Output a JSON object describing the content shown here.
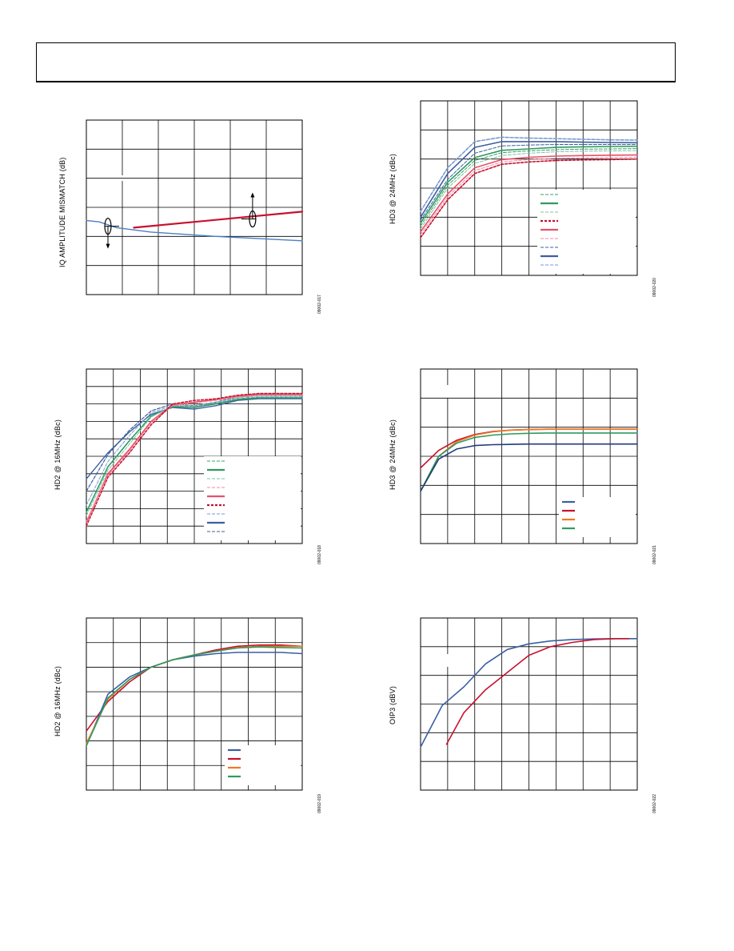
{
  "page": {
    "header_text": ""
  },
  "charts": [
    {
      "id": "c1",
      "ylabel": "IQ AMPLITUDE MISMATCH (dB)",
      "figure_id": "09002-017",
      "series": [
        {
          "color": "#c8102e",
          "width": 2.2,
          "dash": "",
          "x": [
            0.22,
            1.0
          ],
          "y": [
            2.3,
            2.85
          ]
        },
        {
          "color": "#4a7fc1",
          "width": 1.4,
          "dash": "",
          "x": [
            0.0,
            0.06,
            0.14,
            0.3,
            0.6,
            1.0
          ],
          "y": [
            2.55,
            2.5,
            2.3,
            2.15,
            2.0,
            1.85
          ]
        }
      ],
      "markers": [
        {
          "type": "ellipse-down-arrow",
          "x": 0.1,
          "y": 2.35
        },
        {
          "type": "ellipse-up-arrow",
          "x": 0.77,
          "y": 2.6
        }
      ]
    },
    {
      "id": "c2",
      "ylabel": "HD3 @ 24MHz (dBc)",
      "figure_id": "09002-020",
      "legend_styles": [
        {
          "color": "#3aa06a",
          "dash": "4,2",
          "width": 1.0
        },
        {
          "color": "#2e9b5f",
          "dash": "",
          "width": 2.2
        },
        {
          "color": "#7cc4a0",
          "dash": "4,2",
          "width": 1.0
        },
        {
          "color": "#c8102e",
          "dash": "3,2",
          "width": 2.2
        },
        {
          "color": "#e8506a",
          "dash": "",
          "width": 2.2
        },
        {
          "color": "#f08aa0",
          "dash": "4,2",
          "width": 1.0
        },
        {
          "color": "#3b5fa0",
          "dash": "4,2",
          "width": 1.0
        },
        {
          "color": "#3b5fa0",
          "dash": "",
          "width": 2.2
        },
        {
          "color": "#7a9ad0",
          "dash": "4,2",
          "width": 1.0
        }
      ],
      "series": [
        {
          "color": "#7a9ad0",
          "width": 1.6,
          "dash": "4,2",
          "x": [
            0,
            4,
            8,
            12,
            16,
            20,
            24,
            28,
            32
          ],
          "y": [
            2.2,
            3.7,
            4.6,
            4.75,
            4.72,
            4.7,
            4.68,
            4.66,
            4.65
          ]
        },
        {
          "color": "#3b5fa0",
          "width": 1.6,
          "dash": "",
          "x": [
            0,
            4,
            8,
            12,
            16,
            20,
            24,
            28,
            32
          ],
          "y": [
            2.0,
            3.5,
            4.4,
            4.6,
            4.6,
            4.6,
            4.58,
            4.57,
            4.56
          ]
        },
        {
          "color": "#3b5fa0",
          "width": 1.0,
          "dash": "4,2",
          "x": [
            0,
            4,
            8,
            12,
            16,
            20,
            24,
            28,
            32
          ],
          "y": [
            1.9,
            3.3,
            4.2,
            4.45,
            4.48,
            4.5,
            4.5,
            4.5,
            4.5
          ]
        },
        {
          "color": "#2e9b5f",
          "width": 1.6,
          "dash": "",
          "x": [
            0,
            4,
            8,
            12,
            16,
            20,
            24,
            28,
            32
          ],
          "y": [
            1.8,
            3.2,
            4.05,
            4.3,
            4.35,
            4.4,
            4.42,
            4.43,
            4.44
          ]
        },
        {
          "color": "#3aa06a",
          "width": 1.0,
          "dash": "4,2",
          "x": [
            0,
            4,
            8,
            12,
            16,
            20,
            24,
            28,
            32
          ],
          "y": [
            1.7,
            3.1,
            3.95,
            4.22,
            4.28,
            4.32,
            4.34,
            4.35,
            4.36
          ]
        },
        {
          "color": "#7cc4a0",
          "width": 1.0,
          "dash": "4,2",
          "x": [
            0,
            4,
            8,
            12,
            16,
            20,
            24,
            28,
            32
          ],
          "y": [
            1.6,
            3.0,
            3.85,
            4.12,
            4.2,
            4.25,
            4.27,
            4.28,
            4.29
          ]
        },
        {
          "color": "#e8506a",
          "width": 1.6,
          "dash": "",
          "x": [
            0,
            4,
            8,
            12,
            16,
            20,
            24,
            28,
            32
          ],
          "y": [
            1.5,
            2.8,
            3.7,
            3.98,
            4.06,
            4.1,
            4.12,
            4.13,
            4.14
          ]
        },
        {
          "color": "#f08aa0",
          "width": 1.0,
          "dash": "4,2",
          "x": [
            0,
            4,
            8,
            12,
            16,
            20,
            24,
            28,
            32
          ],
          "y": [
            1.4,
            2.7,
            3.6,
            3.9,
            3.98,
            4.02,
            4.04,
            4.05,
            4.06
          ]
        },
        {
          "color": "#c8102e",
          "width": 1.6,
          "dash": "3,2",
          "x": [
            0,
            4,
            8,
            12,
            16,
            20,
            24,
            28,
            32
          ],
          "y": [
            1.3,
            2.6,
            3.5,
            3.82,
            3.9,
            3.95,
            3.97,
            3.98,
            4.0
          ]
        }
      ]
    },
    {
      "id": "c3",
      "ylabel": "HD2 @ 16MHz (dBc)",
      "figure_id": "09002-018",
      "legend_styles": [
        {
          "color": "#3aa06a",
          "dash": "4,2",
          "width": 1.0
        },
        {
          "color": "#2e9b5f",
          "dash": "",
          "width": 2.2
        },
        {
          "color": "#7cc4a0",
          "dash": "4,2",
          "width": 1.0
        },
        {
          "color": "#f08aa0",
          "dash": "4,2",
          "width": 1.0
        },
        {
          "color": "#e8506a",
          "dash": "",
          "width": 2.2
        },
        {
          "color": "#c8102e",
          "dash": "3,2",
          "width": 2.2
        },
        {
          "color": "#7a9ad0",
          "dash": "4,2",
          "width": 1.0
        },
        {
          "color": "#3b5fa0",
          "dash": "",
          "width": 2.2
        },
        {
          "color": "#3b5fa0",
          "dash": "4,2",
          "width": 1.0
        }
      ],
      "series": [
        {
          "color": "#3b5fa0",
          "width": 1.4,
          "dash": "",
          "x": [
            0,
            2,
            4,
            6,
            8,
            10,
            12,
            14,
            16,
            18,
            20
          ],
          "y": [
            3.7,
            5.2,
            6.4,
            7.4,
            7.8,
            7.7,
            7.9,
            8.2,
            8.3,
            8.3,
            8.3
          ]
        },
        {
          "color": "#3b5fa0",
          "width": 1.2,
          "dash": "4,2",
          "x": [
            0,
            2,
            4,
            6,
            8,
            10,
            12,
            14,
            16,
            18,
            20
          ],
          "y": [
            3.0,
            5.1,
            6.5,
            7.6,
            8.0,
            7.9,
            8.1,
            8.4,
            8.5,
            8.5,
            8.5
          ]
        },
        {
          "color": "#7a9ad0",
          "width": 1.0,
          "dash": "4,2",
          "x": [
            0,
            2,
            4,
            6,
            8,
            10,
            12,
            14,
            16,
            18,
            20
          ],
          "y": [
            2.2,
            4.7,
            6.2,
            7.5,
            7.9,
            7.85,
            8.05,
            8.3,
            8.4,
            8.4,
            8.4
          ]
        },
        {
          "color": "#2e9b5f",
          "width": 1.6,
          "dash": "",
          "x": [
            0,
            2,
            4,
            6,
            8,
            10,
            12,
            14,
            16,
            18,
            20
          ],
          "y": [
            1.8,
            4.4,
            5.9,
            7.3,
            7.85,
            7.8,
            8.0,
            8.25,
            8.35,
            8.35,
            8.35
          ]
        },
        {
          "color": "#7cc4a0",
          "width": 1.0,
          "dash": "4,2",
          "x": [
            0,
            2,
            4,
            6,
            8,
            10,
            12,
            14,
            16,
            18,
            20
          ],
          "y": [
            1.6,
            4.2,
            5.7,
            7.25,
            7.9,
            7.9,
            8.1,
            8.35,
            8.45,
            8.45,
            8.45
          ]
        },
        {
          "color": "#e8506a",
          "width": 1.6,
          "dash": "",
          "x": [
            0,
            2,
            4,
            6,
            8,
            10,
            12,
            14,
            16,
            18,
            20
          ],
          "y": [
            1.2,
            4.0,
            5.4,
            7.0,
            7.95,
            8.1,
            8.25,
            8.45,
            8.55,
            8.55,
            8.55
          ]
        },
        {
          "color": "#f08aa0",
          "width": 1.0,
          "dash": "4,2",
          "x": [
            0,
            2,
            4,
            6,
            8,
            10,
            12,
            14,
            16,
            18,
            20
          ],
          "y": [
            1.3,
            3.9,
            5.3,
            6.9,
            7.9,
            8.05,
            8.2,
            8.4,
            8.5,
            8.5,
            8.5
          ]
        },
        {
          "color": "#c8102e",
          "width": 1.4,
          "dash": "3,2",
          "x": [
            0,
            2,
            4,
            6,
            8,
            10,
            12,
            14,
            16,
            18,
            20
          ],
          "y": [
            1.0,
            3.8,
            5.2,
            6.8,
            8.0,
            8.2,
            8.3,
            8.5,
            8.6,
            8.6,
            8.6
          ]
        }
      ]
    },
    {
      "id": "c4",
      "ylabel": "HD3 @ 24MHz (dBc)",
      "figure_id": "09002-021",
      "legend_styles": [
        {
          "color": "#3b5fa0",
          "dash": "",
          "width": 2.2
        },
        {
          "color": "#c8102e",
          "dash": "",
          "width": 2.2
        },
        {
          "color": "#f07820",
          "dash": "",
          "width": 2.2
        },
        {
          "color": "#2e9b5f",
          "dash": "",
          "width": 2.2
        }
      ],
      "series": [
        {
          "color": "#c8102e",
          "width": 1.6,
          "dash": "",
          "x": [
            0,
            2,
            4,
            6,
            8,
            10,
            12,
            14,
            16,
            18,
            20,
            22,
            24
          ],
          "y": [
            2.6,
            3.2,
            3.55,
            3.75,
            3.85,
            3.9,
            3.92,
            3.93,
            3.93,
            3.93,
            3.93,
            3.93,
            3.93
          ]
        },
        {
          "color": "#f07820",
          "width": 1.6,
          "dash": "",
          "x": [
            0,
            2,
            4,
            6,
            8,
            10,
            12,
            14,
            16,
            18,
            20,
            22,
            24
          ],
          "y": [
            1.8,
            3.0,
            3.5,
            3.73,
            3.84,
            3.9,
            3.92,
            3.93,
            3.93,
            3.93,
            3.93,
            3.93,
            3.93
          ]
        },
        {
          "color": "#2e9b5f",
          "width": 1.6,
          "dash": "",
          "x": [
            0,
            2,
            4,
            6,
            8,
            10,
            12,
            14,
            16,
            18,
            20,
            22,
            24
          ],
          "y": [
            1.8,
            3.0,
            3.45,
            3.65,
            3.73,
            3.77,
            3.79,
            3.8,
            3.8,
            3.8,
            3.8,
            3.8,
            3.8
          ]
        },
        {
          "color": "#1f3b7a",
          "width": 1.6,
          "dash": "",
          "x": [
            0,
            2,
            4,
            6,
            8,
            10,
            12,
            14,
            16,
            18,
            20,
            22,
            24
          ],
          "y": [
            1.8,
            2.9,
            3.25,
            3.37,
            3.4,
            3.41,
            3.42,
            3.42,
            3.42,
            3.42,
            3.42,
            3.42,
            3.42
          ]
        }
      ]
    },
    {
      "id": "c5",
      "ylabel": "HD2 @ 16MHz (dBc)",
      "figure_id": "09002-019",
      "legend_styles": [
        {
          "color": "#3b5fa0",
          "dash": "",
          "width": 2.2
        },
        {
          "color": "#c8102e",
          "dash": "",
          "width": 2.2
        },
        {
          "color": "#f07820",
          "dash": "",
          "width": 2.2
        },
        {
          "color": "#2e9b5f",
          "dash": "",
          "width": 2.2
        }
      ],
      "series": [
        {
          "color": "#c8102e",
          "width": 1.6,
          "dash": "",
          "x": [
            0,
            2,
            4,
            6,
            8,
            10,
            12,
            14,
            16,
            18,
            20
          ],
          "y": [
            2.4,
            3.6,
            4.4,
            5.0,
            5.3,
            5.5,
            5.7,
            5.85,
            5.9,
            5.9,
            5.85
          ]
        },
        {
          "color": "#3b5fa0",
          "width": 1.6,
          "dash": "",
          "x": [
            0,
            2,
            4,
            6,
            8,
            10,
            12,
            14,
            16,
            18,
            20
          ],
          "y": [
            1.8,
            3.9,
            4.6,
            5.0,
            5.3,
            5.45,
            5.55,
            5.6,
            5.6,
            5.6,
            5.55
          ]
        },
        {
          "color": "#f07820",
          "width": 1.6,
          "dash": "",
          "x": [
            0,
            2,
            4,
            6,
            8,
            10,
            12,
            14,
            16,
            18,
            20
          ],
          "y": [
            1.9,
            3.7,
            4.5,
            5.0,
            5.3,
            5.5,
            5.65,
            5.8,
            5.85,
            5.85,
            5.85
          ]
        },
        {
          "color": "#2e9b5f",
          "width": 1.6,
          "dash": "",
          "x": [
            0,
            2,
            4,
            6,
            8,
            10,
            12,
            14,
            16,
            18,
            20
          ],
          "y": [
            1.8,
            3.75,
            4.5,
            5.0,
            5.3,
            5.5,
            5.65,
            5.78,
            5.82,
            5.8,
            5.78
          ]
        }
      ]
    },
    {
      "id": "c6",
      "ylabel": "OIP3 (dBV)",
      "figure_id": "09002-022",
      "series": [
        {
          "color": "#3b5fa0",
          "width": 1.6,
          "dash": "",
          "x": [
            0,
            1,
            2,
            3,
            4,
            5,
            6,
            7,
            8,
            9,
            10
          ],
          "y": [
            1.5,
            2.95,
            3.6,
            4.4,
            4.9,
            5.1,
            5.2,
            5.25,
            5.27,
            5.28,
            5.28
          ]
        },
        {
          "color": "#c8102e",
          "width": 1.6,
          "dash": "",
          "x": [
            1.2,
            2,
            3,
            4,
            5,
            6,
            7,
            8,
            9,
            9.6
          ],
          "y": [
            1.6,
            2.7,
            3.5,
            4.1,
            4.7,
            5.0,
            5.15,
            5.25,
            5.28,
            5.28
          ]
        }
      ]
    }
  ]
}
